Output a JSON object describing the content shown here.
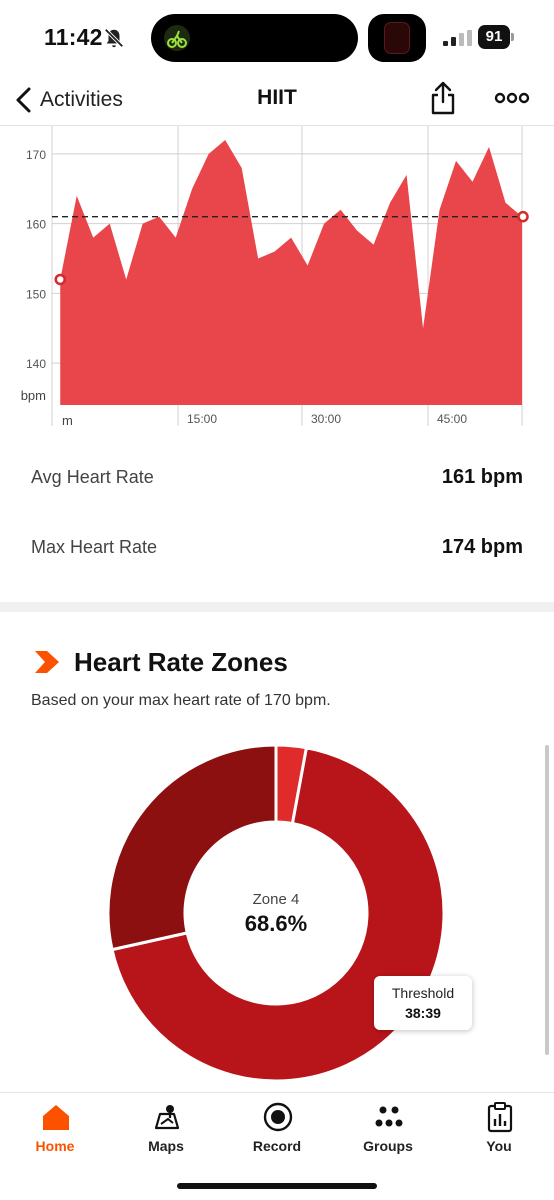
{
  "status_bar": {
    "time": "11:42",
    "battery": "91"
  },
  "nav": {
    "back_label": "Activities",
    "title": "HIIT"
  },
  "chart_data": {
    "type": "area",
    "x": [
      0,
      2,
      4,
      6,
      8,
      10,
      12,
      14,
      16,
      18,
      20,
      22,
      24,
      26,
      28,
      30,
      32,
      34,
      36,
      38,
      40,
      42,
      44,
      46,
      48,
      50,
      52,
      54,
      56
    ],
    "y": [
      152,
      164,
      158,
      160,
      152,
      160,
      161,
      158,
      165,
      170,
      172,
      168,
      155,
      156,
      158,
      154,
      160,
      162,
      159,
      157,
      163,
      167,
      145,
      162,
      169,
      166,
      171,
      163,
      161
    ],
    "y_extra_points": [],
    "ylim": [
      134,
      174
    ],
    "xlim": [
      -1,
      56
    ],
    "ylabel": "bpm",
    "xlabel": "m",
    "y_ticks": [
      "140",
      "150",
      "160",
      "170"
    ],
    "x_ticks": [
      "15:00",
      "30:00",
      "45:00"
    ],
    "average": 161,
    "grid": true,
    "color": "#e8464a"
  },
  "stats": {
    "avg_label": "Avg Heart Rate",
    "avg_value": "161 bpm",
    "max_label": "Max Heart Rate",
    "max_value": "174 bpm"
  },
  "zones": {
    "title": "Heart Rate Zones",
    "subtitle": "Based on your max heart rate of 170 bpm.",
    "center_label": "Zone 4",
    "center_percent": "68.6%",
    "tooltip_name": "Threshold",
    "tooltip_time": "38:39",
    "donut_data": [
      {
        "zone": "Zone 3",
        "percent": 2.9,
        "color": "#e02b2b"
      },
      {
        "zone": "Zone 4",
        "percent": 68.6,
        "color": "#b8151a"
      },
      {
        "zone": "Zone 5",
        "percent": 28.5,
        "color": "#8c1010"
      }
    ]
  },
  "tabs": [
    {
      "label": "Home",
      "icon": "home-icon",
      "active": true
    },
    {
      "label": "Maps",
      "icon": "maps-icon",
      "active": false
    },
    {
      "label": "Record",
      "icon": "record-icon",
      "active": false
    },
    {
      "label": "Groups",
      "icon": "groups-icon",
      "active": false
    },
    {
      "label": "You",
      "icon": "you-icon",
      "active": false
    }
  ],
  "colors": {
    "brand": "#fc5200",
    "chart_fill": "#e8464a"
  }
}
